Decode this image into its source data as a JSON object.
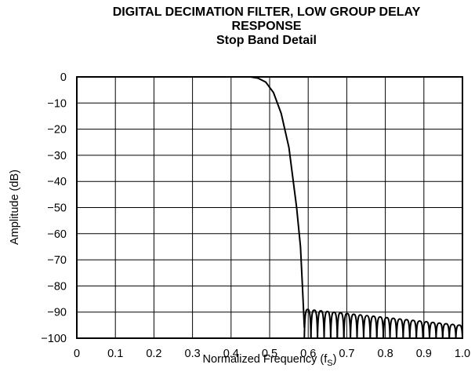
{
  "chart_data": {
    "type": "line",
    "title_lines": [
      "DIGITAL DECIMATION FILTER, LOW GROUP DELAY",
      "RESPONSE",
      "Stop Band Detail"
    ],
    "xlabel": "Normalized Frequency (f",
    "xlabel_subscript": "S",
    "xlabel_suffix": ")",
    "ylabel": "Amplitude (dB)",
    "xlim": [
      0,
      1.0
    ],
    "ylim": [
      -100,
      0
    ],
    "xticks": [
      0,
      0.1,
      0.2,
      0.3,
      0.4,
      0.5,
      0.6,
      0.7,
      0.8,
      0.9,
      1.0
    ],
    "xtick_labels": [
      "0",
      "0.1",
      "0.2",
      "0.3",
      "0.4",
      "0.5",
      "0.6",
      "0.7",
      "0.8",
      "0.9",
      "1.0"
    ],
    "yticks": [
      0,
      -10,
      -20,
      -30,
      -40,
      -50,
      -60,
      -70,
      -80,
      -90,
      -100
    ],
    "ytick_labels": [
      "0",
      "−10",
      "−20",
      "−30",
      "−40",
      "−50",
      "−60",
      "−70",
      "−80",
      "−90",
      "−100"
    ],
    "grid": true,
    "series": [
      {
        "x": [
          0,
          0.43,
          0.45,
          0.47,
          0.49,
          0.51,
          0.53,
          0.55,
          0.57,
          0.58,
          0.585,
          0.59
        ],
        "y": [
          0,
          0,
          0,
          -0.5,
          -2,
          -6,
          -14,
          -27,
          -50,
          -65,
          -80,
          -96
        ]
      }
    ],
    "stopband": {
      "x_start": 0.59,
      "x_end": 1.0,
      "lobe_count": 24,
      "peak_start": -89,
      "peak_end": -95,
      "null": -100
    }
  }
}
